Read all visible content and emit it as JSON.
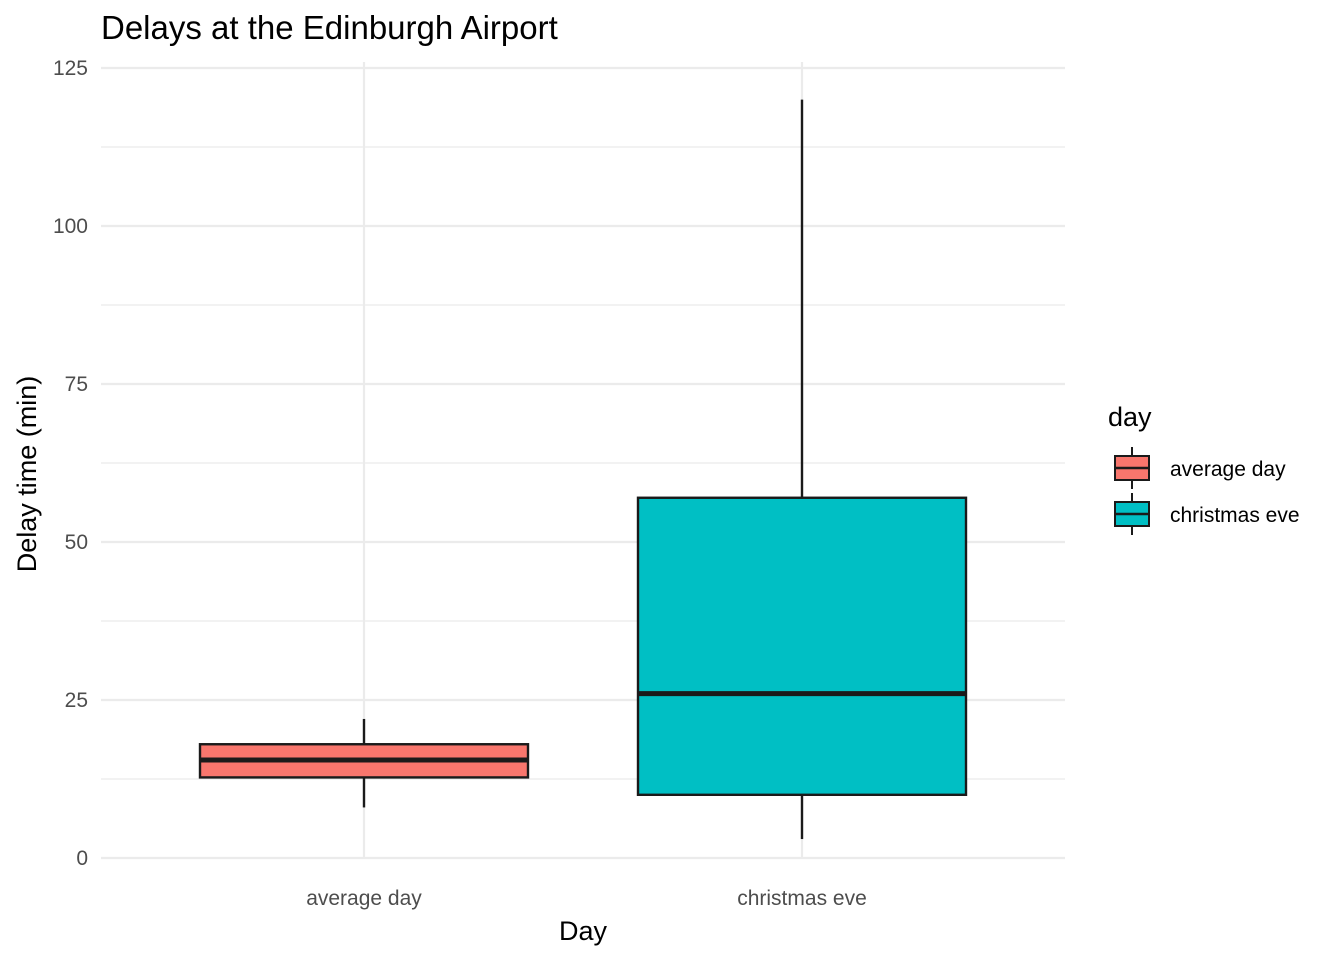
{
  "chart_data": {
    "type": "boxplot",
    "title": "Delays at the Edinburgh Airport",
    "xlabel": "Day",
    "ylabel": "Delay time (min)",
    "ylim": [
      0,
      125
    ],
    "y_ticks": [
      0,
      25,
      50,
      75,
      100,
      125
    ],
    "grid": true,
    "legend": {
      "title": "day",
      "placement": "right",
      "items": [
        "average day",
        "christmas eve"
      ]
    },
    "categories": [
      "average day",
      "christmas eve"
    ],
    "series": [
      {
        "category": "average day",
        "color": "#F8766D",
        "whisker_low": 8,
        "q1": 12.75,
        "median": 15.5,
        "q3": 18,
        "whisker_high": 22
      },
      {
        "category": "christmas eve",
        "color": "#00BFC4",
        "whisker_low": 3,
        "q1": 10,
        "median": 26,
        "q3": 57,
        "whisker_high": 120
      }
    ]
  }
}
